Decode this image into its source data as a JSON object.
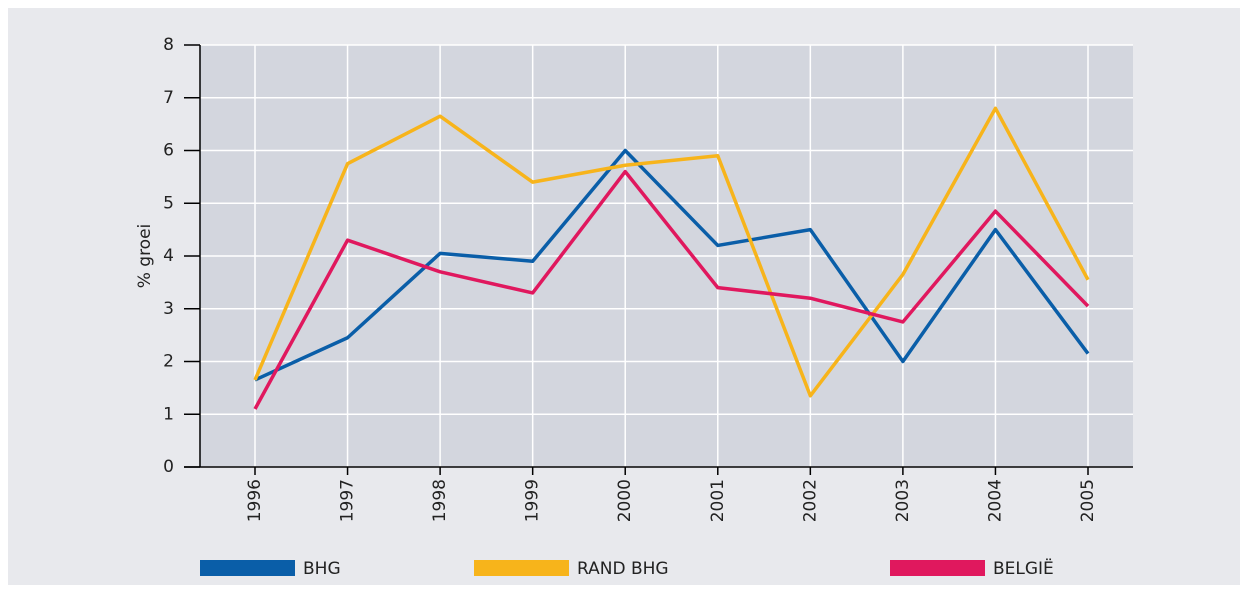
{
  "chart_data": {
    "type": "line",
    "y_label": "% groei",
    "categories": [
      "1996",
      "1997",
      "1998",
      "1999",
      "2000",
      "2001",
      "2002",
      "2003",
      "2004",
      "2005"
    ],
    "series": [
      {
        "name": "BHG",
        "color": "#0a5ea8",
        "values": [
          1.65,
          2.45,
          4.05,
          3.9,
          6.0,
          4.2,
          4.5,
          2.0,
          4.5,
          2.15
        ]
      },
      {
        "name": "RAND BHG",
        "color": "#f7b41b",
        "values": [
          1.65,
          5.75,
          6.65,
          5.4,
          5.72,
          5.9,
          1.35,
          3.65,
          6.8,
          3.55
        ]
      },
      {
        "name": "BELGIË",
        "color": "#e0185e",
        "values": [
          1.1,
          4.3,
          3.7,
          3.3,
          5.6,
          3.4,
          3.2,
          2.75,
          4.85,
          3.05
        ]
      }
    ],
    "ylim": [
      0,
      8
    ],
    "yticks": [
      0,
      1,
      2,
      3,
      4,
      5,
      6,
      7,
      8
    ],
    "grid": true
  }
}
